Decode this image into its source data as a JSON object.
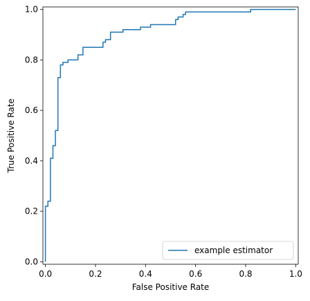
{
  "chart_data": {
    "type": "line",
    "title": "",
    "xlabel": "False Positive Rate",
    "ylabel": "True Positive Rate",
    "xlim": [
      -0.01,
      1.01
    ],
    "ylim": [
      -0.01,
      1.01
    ],
    "xticks": [
      0.0,
      0.2,
      0.4,
      0.6,
      0.8,
      1.0
    ],
    "xtick_labels": [
      "0.0",
      "0.2",
      "0.4",
      "0.6",
      "0.8",
      "1.0"
    ],
    "yticks": [
      0.0,
      0.2,
      0.4,
      0.6,
      0.8,
      1.0
    ],
    "ytick_labels": [
      "0.0",
      "0.2",
      "0.4",
      "0.6",
      "0.8",
      "1.0"
    ],
    "grid": false,
    "legend_position": "lower-right",
    "series": [
      {
        "name": "example estimator",
        "color": "#1f77b4",
        "step": true,
        "x": [
          0.0,
          0.0,
          0.0,
          0.01,
          0.01,
          0.02,
          0.02,
          0.03,
          0.03,
          0.04,
          0.04,
          0.05,
          0.05,
          0.06,
          0.06,
          0.07,
          0.07,
          0.09,
          0.09,
          0.13,
          0.13,
          0.15,
          0.15,
          0.23,
          0.23,
          0.24,
          0.24,
          0.26,
          0.26,
          0.31,
          0.31,
          0.38,
          0.38,
          0.42,
          0.42,
          0.52,
          0.52,
          0.53,
          0.53,
          0.55,
          0.55,
          0.56,
          0.56,
          0.82,
          0.82,
          1.0
        ],
        "y": [
          0.0,
          0.0,
          0.22,
          0.22,
          0.24,
          0.24,
          0.41,
          0.41,
          0.46,
          0.46,
          0.52,
          0.52,
          0.73,
          0.73,
          0.78,
          0.78,
          0.79,
          0.79,
          0.8,
          0.8,
          0.82,
          0.82,
          0.85,
          0.85,
          0.87,
          0.87,
          0.88,
          0.88,
          0.91,
          0.91,
          0.92,
          0.92,
          0.93,
          0.93,
          0.94,
          0.94,
          0.96,
          0.96,
          0.97,
          0.97,
          0.98,
          0.98,
          0.99,
          0.99,
          1.0,
          1.0
        ]
      }
    ]
  }
}
